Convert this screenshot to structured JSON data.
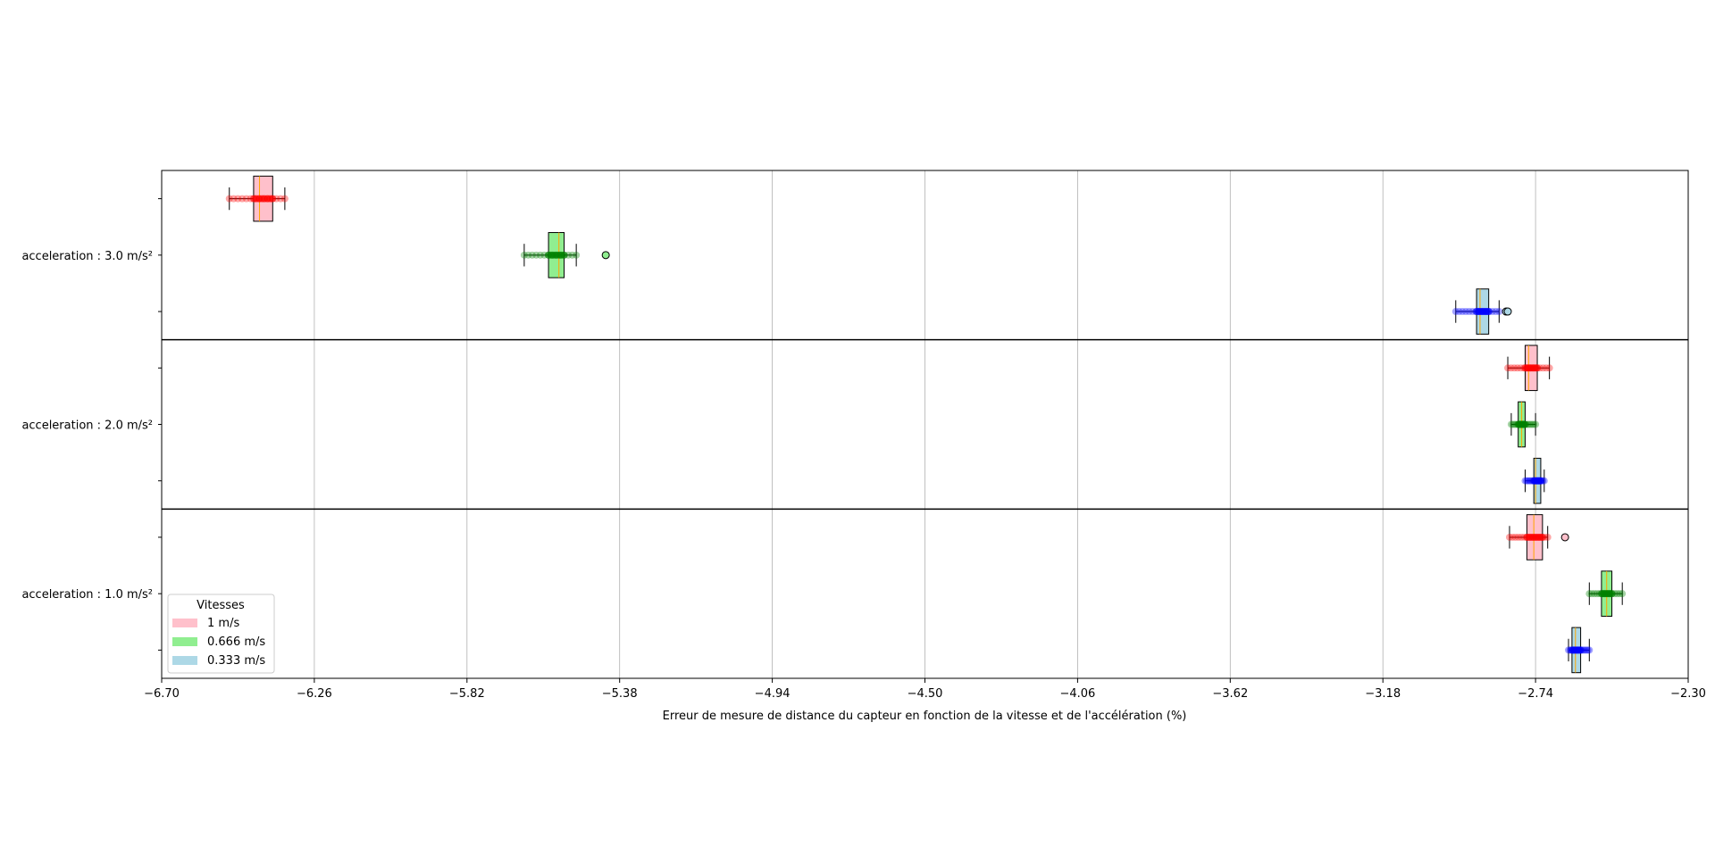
{
  "chart_data": {
    "type": "box",
    "orientation": "horizontal",
    "xlabel": "Erreur de mesure de distance du capteur en fonction de la vitesse et de l'accélération (%)",
    "xlim": [
      -6.7,
      -2.3
    ],
    "xticks": [
      "−6.70",
      "−6.26",
      "−5.82",
      "−5.38",
      "−4.94",
      "−4.50",
      "−4.06",
      "−3.62",
      "−3.18",
      "−2.74",
      "−2.30"
    ],
    "xtick_values": [
      -6.7,
      -6.26,
      -5.82,
      -5.38,
      -4.94,
      -4.5,
      -4.06,
      -3.62,
      -3.18,
      -2.74,
      -2.3
    ],
    "grid": "x",
    "legend": {
      "title": "Vitesses",
      "placement": "lower-left",
      "entries": [
        {
          "label": "1 m/s",
          "color": "#ffc0cb"
        },
        {
          "label": "0.666 m/s",
          "color": "#90ee90"
        },
        {
          "label": "0.333 m/s",
          "color": "#add8e6"
        }
      ]
    },
    "group_order": [
      "1 m/s",
      "0.666 m/s",
      "0.333 m/s"
    ],
    "point_colors": [
      "#ff0000",
      "#008000",
      "#0000ff"
    ],
    "fill_colors": [
      "#ffc0cb",
      "#90ee90",
      "#add8e6"
    ],
    "groups": [
      {
        "label": "acceleration : 3.0 m/s²",
        "boxes": [
          {
            "whislo": -6.505,
            "q1": -6.435,
            "med": -6.418,
            "q3": -6.38,
            "whishi": -6.345,
            "fliers": []
          },
          {
            "whislo": -5.655,
            "q1": -5.585,
            "med": -5.555,
            "q3": -5.54,
            "whishi": -5.505,
            "fliers": [
              -5.42
            ]
          },
          {
            "whislo": -2.97,
            "q1": -2.91,
            "med": -2.9,
            "q3": -2.875,
            "whishi": -2.845,
            "fliers": [
              -2.825,
              -2.82
            ]
          }
        ]
      },
      {
        "label": "acceleration : 2.0 m/s²",
        "boxes": [
          {
            "whislo": -2.82,
            "q1": -2.77,
            "med": -2.76,
            "q3": -2.735,
            "whishi": -2.7,
            "fliers": []
          },
          {
            "whislo": -2.81,
            "q1": -2.79,
            "med": -2.78,
            "q3": -2.77,
            "whishi": -2.74,
            "fliers": []
          },
          {
            "whislo": -2.77,
            "q1": -2.745,
            "med": -2.74,
            "q3": -2.725,
            "whishi": -2.715,
            "fliers": []
          }
        ]
      },
      {
        "label": "acceleration : 1.0 m/s²",
        "boxes": [
          {
            "whislo": -2.815,
            "q1": -2.765,
            "med": -2.745,
            "q3": -2.72,
            "whishi": -2.705,
            "fliers": [
              -2.655
            ]
          },
          {
            "whislo": -2.585,
            "q1": -2.55,
            "med": -2.535,
            "q3": -2.52,
            "whishi": -2.49,
            "fliers": []
          },
          {
            "whislo": -2.645,
            "q1": -2.635,
            "med": -2.625,
            "q3": -2.61,
            "whishi": -2.585,
            "fliers": []
          }
        ]
      }
    ]
  }
}
